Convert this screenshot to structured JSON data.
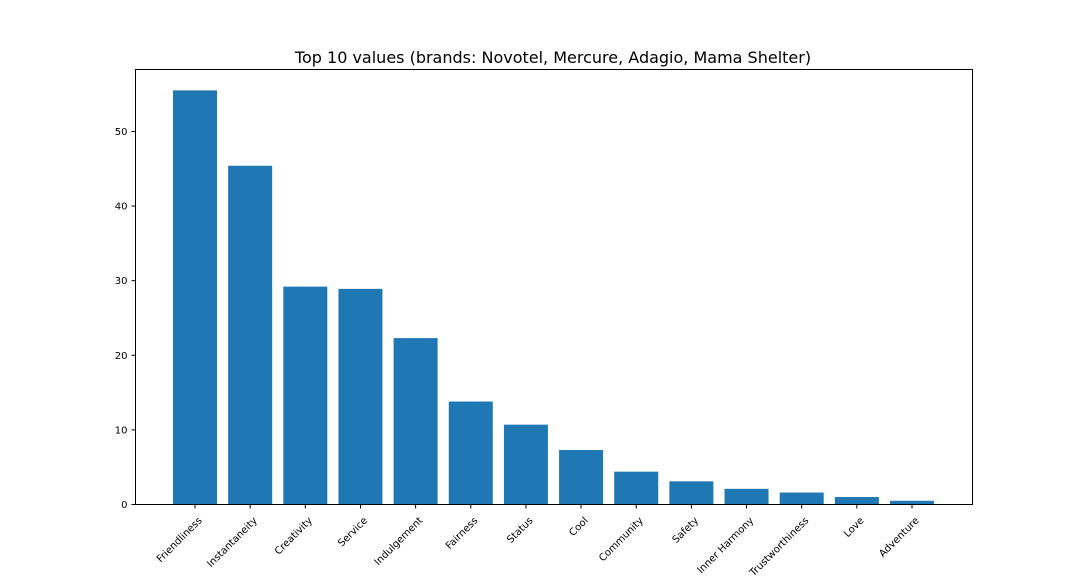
{
  "chart_data": {
    "type": "bar",
    "title": "Top 10 values (brands: Novotel, Mercure, Adagio, Mama Shelter)",
    "xlabel": "",
    "ylabel": "",
    "categories": [
      "Friendliness",
      "Instantaneity",
      "Creativity",
      "Service",
      "Indulgement",
      "Fairness",
      "Status",
      "Cool",
      "Community",
      "Safety",
      "Inner Harmony",
      "Trustworthiness",
      "Love",
      "Adventure"
    ],
    "values": [
      55.5,
      45.4,
      29.2,
      28.9,
      22.3,
      13.8,
      10.7,
      7.3,
      4.4,
      3.1,
      2.1,
      1.6,
      1.0,
      0.5
    ],
    "ylim": [
      0,
      58.3
    ],
    "yticks": [
      0,
      10,
      20,
      30,
      40,
      50
    ],
    "grid": false,
    "bar_color": "#1f77b4"
  }
}
